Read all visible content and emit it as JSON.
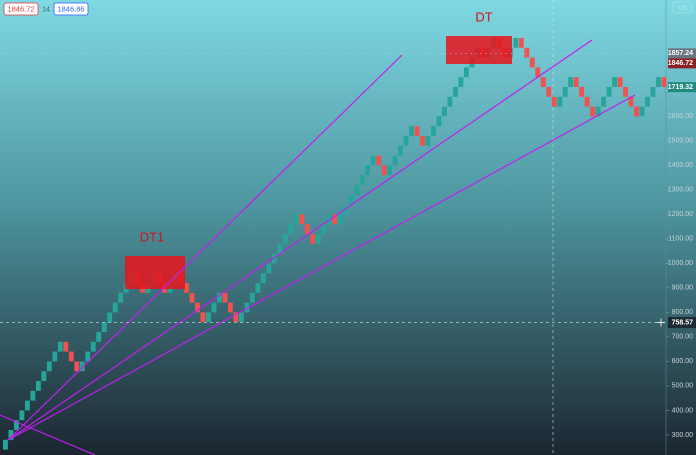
{
  "chart_data": {
    "type": "renko",
    "header": {
      "bid": 1846.72,
      "quantity": 14,
      "ask": 1846.86,
      "symbol": "US"
    },
    "up_color": "#26a69a",
    "down_color": "#ef5350",
    "ylim": [
      218,
      2075
    ],
    "yticks": [
      {
        "value": 300,
        "label": "300.00"
      },
      {
        "value": 400,
        "label": "400.00"
      },
      {
        "value": 500,
        "label": "500.00"
      },
      {
        "value": 600,
        "label": "600.00"
      },
      {
        "value": 700,
        "label": "700.00"
      },
      {
        "value": 800,
        "label": "800.00"
      },
      {
        "value": 900,
        "label": "900.00"
      },
      {
        "value": 1000,
        "label": "1000.00"
      },
      {
        "value": 1100,
        "label": "1100.00"
      },
      {
        "value": 1200,
        "label": "1200.00"
      },
      {
        "value": 1300,
        "label": "1300.00"
      },
      {
        "value": 1400,
        "label": "1400.00"
      },
      {
        "value": 1500,
        "label": "1500.00"
      },
      {
        "value": 1600,
        "label": "1600.00"
      }
    ],
    "first_open": 240,
    "values": [
      280,
      320,
      360,
      400,
      440,
      480,
      520,
      560,
      600,
      640,
      680,
      640,
      600,
      560,
      600,
      640,
      680,
      720,
      760,
      800,
      840,
      880,
      920,
      960,
      920,
      880,
      920,
      960,
      920,
      880,
      920,
      960,
      920,
      880,
      840,
      800,
      760,
      800,
      840,
      880,
      840,
      800,
      760,
      800,
      840,
      880,
      920,
      960,
      1000,
      1040,
      1080,
      1120,
      1160,
      1200,
      1160,
      1120,
      1080,
      1120,
      1160,
      1200,
      1160,
      1200,
      1240,
      1280,
      1320,
      1360,
      1400,
      1440,
      1400,
      1360,
      1400,
      1440,
      1480,
      1520,
      1560,
      1520,
      1480,
      1520,
      1560,
      1600,
      1640,
      1680,
      1720,
      1760,
      1800,
      1840,
      1880,
      1840,
      1880,
      1920,
      1880,
      1840,
      1880,
      1920,
      1880,
      1840,
      1800,
      1760,
      1720,
      1680,
      1640,
      1680,
      1720,
      1760,
      1720,
      1680,
      1640,
      1600,
      1640,
      1680,
      1720,
      1760,
      1720,
      1680,
      1640,
      1600,
      1640,
      1680,
      1720,
      1760,
      1720
    ],
    "price_badges": [
      {
        "value": 1857.24,
        "color": "#6b7580"
      },
      {
        "value": 1846.72,
        "color": "#8b1f24"
      },
      {
        "value": 1719.32,
        "color": "#1f8a7e"
      }
    ],
    "crosshair": {
      "value": 758.57
    },
    "annotations": [
      "DT1",
      "DT"
    ]
  }
}
